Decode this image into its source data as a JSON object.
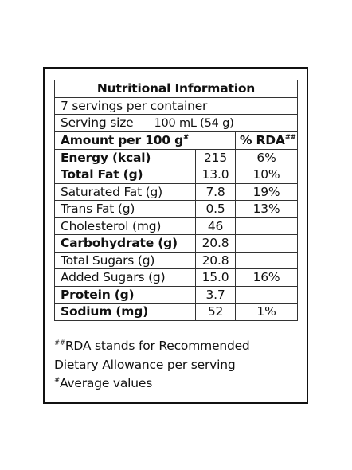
{
  "label": {
    "title": "Nutritional Information",
    "servings_per_container": "7 servings per container",
    "serving_size_label": "Serving size",
    "serving_size_value": "100 mL (54 g)",
    "amount_header": "Amount per 100 g",
    "amount_header_mark": "#",
    "rda_header": "% RDA",
    "rda_header_mark": "##",
    "rows": [
      {
        "name": "Energy (kcal)",
        "value": "215",
        "rda": "6%",
        "bold": true
      },
      {
        "name": "Total Fat (g)",
        "value": "13.0",
        "rda": "10%",
        "bold": true
      },
      {
        "name": "Saturated Fat (g)",
        "value": "7.8",
        "rda": "19%",
        "bold": false
      },
      {
        "name": "Trans Fat (g)",
        "value": "0.5",
        "rda": "13%",
        "bold": false
      },
      {
        "name": "Cholesterol (mg)",
        "value": "46",
        "rda": "",
        "bold": false
      },
      {
        "name": "Carbohydrate (g)",
        "value": "20.8",
        "rda": "",
        "bold": true
      },
      {
        "name": "Total Sugars (g)",
        "value": "20.8",
        "rda": "",
        "bold": false
      },
      {
        "name": "Added Sugars (g)",
        "value": "15.0",
        "rda": "16%",
        "bold": false
      },
      {
        "name": "Protein (g)",
        "value": "3.7",
        "rda": "",
        "bold": true
      },
      {
        "name": "Sodium (mg)",
        "value": "52",
        "rda": "1%",
        "bold": true
      }
    ]
  },
  "footnotes": {
    "rda_mark": "##",
    "rda_line1": "RDA stands for Recommended",
    "rda_line2": "Dietary Allowance per serving",
    "avg_mark": "#",
    "avg_text": "Average values"
  }
}
